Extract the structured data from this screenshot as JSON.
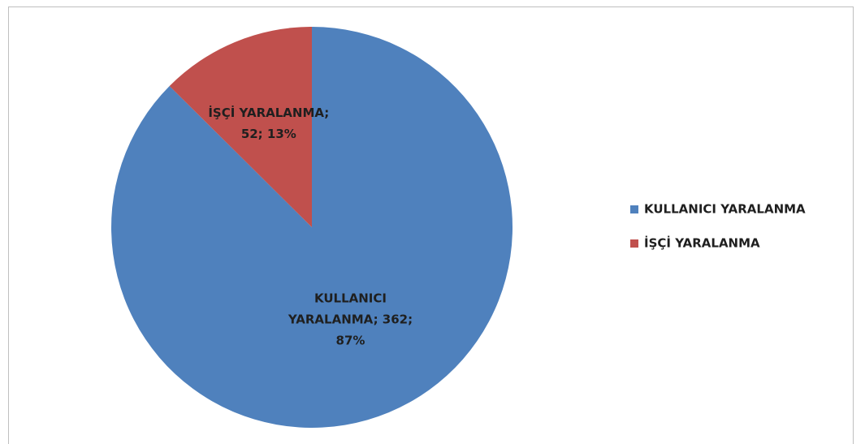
{
  "chart_data": {
    "type": "pie",
    "categories": [
      "KULLANICI YARALANMA",
      "İŞÇİ YARALANMA"
    ],
    "values": [
      362,
      52
    ],
    "value_labels": [
      [
        "KULLANICI",
        "YARALANMA; 362;",
        "87%"
      ],
      [
        "İŞÇİ YARALANMA;",
        "52; 13%"
      ]
    ],
    "colors": [
      "#4f81bd",
      "#c0504d"
    ],
    "legend": "right"
  }
}
